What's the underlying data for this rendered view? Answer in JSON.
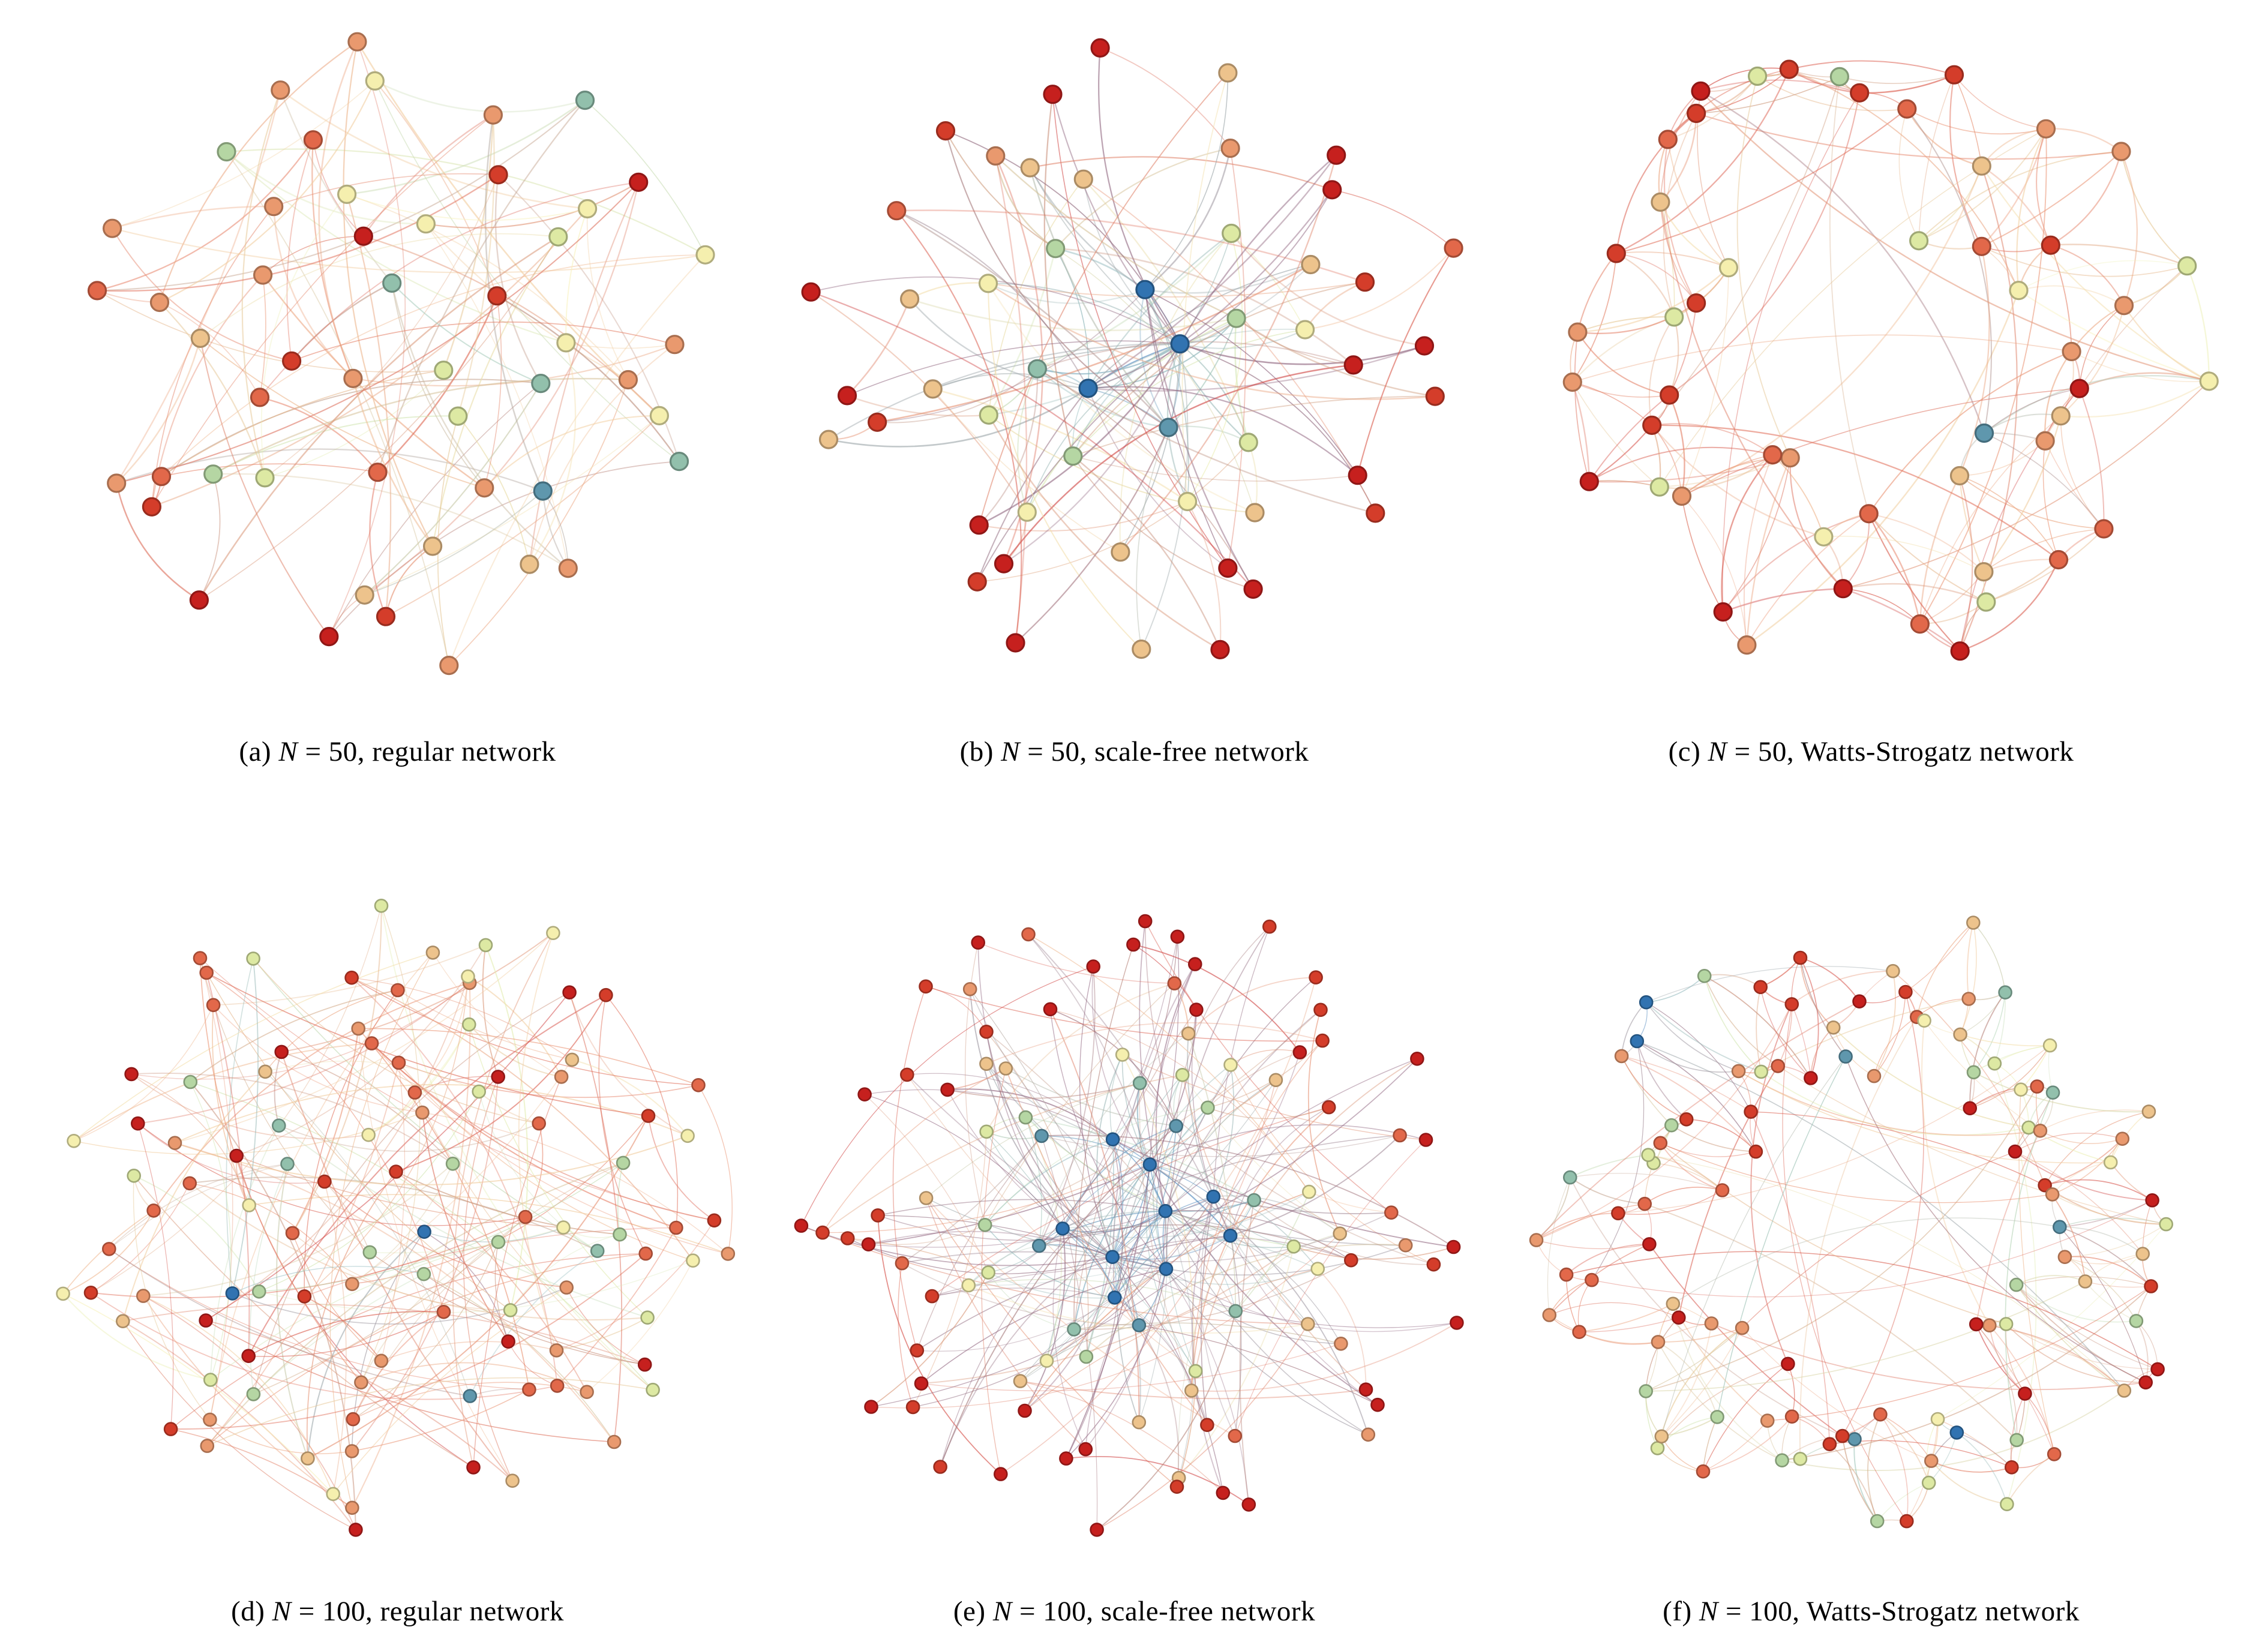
{
  "figure": {
    "background": "#ffffff",
    "text_color": "#000000",
    "palette_names": [
      "red",
      "scarlet",
      "salmon",
      "orange",
      "tan",
      "pale-yellow",
      "yellow-green",
      "pale-green",
      "teal-green",
      "steel-blue",
      "blue"
    ],
    "palette": [
      "#c6201e",
      "#d43d2a",
      "#e2684a",
      "#e9996e",
      "#edc38c",
      "#f5efae",
      "#dde9a3",
      "#b5d6a3",
      "#92c0ac",
      "#5f97ad",
      "#3173b1"
    ],
    "panels": [
      {
        "id": "a",
        "n": 50,
        "network": "regular",
        "caption": {
          "pre": "(a) ",
          "var": "N",
          "rest": " = 50, regular network"
        },
        "seed": 11,
        "layout": "disc",
        "gen": {
          "perms": 2,
          "half": 1
        },
        "node_radius": 14.5,
        "node_stroke": 3.2,
        "edge_width": 2.1,
        "color_weights": [
          0.09,
          0.07,
          0.12,
          0.17,
          0.12,
          0.17,
          0.08,
          0.08,
          0.05,
          0.03,
          0.02
        ]
      },
      {
        "id": "b",
        "n": 50,
        "network": "scale-free",
        "caption": {
          "pre": "(b) ",
          "var": "N",
          "rest": " = 50, scale-free network"
        },
        "seed": 23,
        "layout": "disc",
        "gen": {
          "m": 3
        },
        "node_radius": 14.5,
        "node_stroke": 3.2,
        "edge_width": 2.1,
        "rank_colors": [
          [
            0.042,
            10
          ],
          [
            0.062,
            9
          ],
          [
            0.1,
            8
          ],
          [
            0.16,
            7
          ],
          [
            0.22,
            6
          ],
          [
            0.3,
            5
          ],
          [
            0.42,
            4
          ]
        ],
        "leaf_weights": [
          0.45,
          0.25,
          0.18,
          0.07,
          0.05
        ]
      },
      {
        "id": "c",
        "n": 50,
        "network": "Watts-Strogatz",
        "caption": {
          "pre": "(c) ",
          "var": "N",
          "rest": " = 50, Watts-Strogatz network"
        },
        "seed": 37,
        "layout": "ring",
        "gen": {
          "k": 8,
          "p": 0.22
        },
        "node_radius": 14.5,
        "node_stroke": 3.2,
        "edge_width": 2.0,
        "color_weights": [
          0.17,
          0.14,
          0.19,
          0.18,
          0.12,
          0.09,
          0.05,
          0.03,
          0.01,
          0.01,
          0.01
        ]
      },
      {
        "id": "d",
        "n": 100,
        "network": "regular",
        "caption": {
          "pre": "(d) ",
          "var": "N",
          "rest": " = 100, regular network"
        },
        "seed": 41,
        "layout": "disc",
        "gen": {
          "perms": 2,
          "half": 0
        },
        "node_radius": 10.5,
        "node_stroke": 2.6,
        "edge_width": 1.7,
        "color_weights": [
          0.13,
          0.1,
          0.15,
          0.16,
          0.12,
          0.14,
          0.09,
          0.06,
          0.03,
          0.01,
          0.01
        ]
      },
      {
        "id": "e",
        "n": 100,
        "network": "scale-free",
        "caption": {
          "pre": "(e) ",
          "var": "N",
          "rest": " = 100, scale-free network"
        },
        "seed": 59,
        "layout": "disc",
        "gen": {
          "m": 3
        },
        "node_radius": 10.5,
        "node_stroke": 2.6,
        "edge_width": 1.6,
        "rank_colors": [
          [
            0.09,
            10
          ],
          [
            0.13,
            9
          ],
          [
            0.17,
            8
          ],
          [
            0.21,
            7
          ],
          [
            0.26,
            6
          ],
          [
            0.32,
            5
          ],
          [
            0.42,
            4
          ]
        ],
        "leaf_weights": [
          0.5,
          0.25,
          0.15,
          0.06,
          0.04
        ]
      },
      {
        "id": "f",
        "n": 100,
        "network": "Watts-Strogatz",
        "caption": {
          "pre": "(f) ",
          "var": "N",
          "rest": " = 100, Watts-Strogatz network"
        },
        "seed": 73,
        "layout": "ring",
        "gen": {
          "k": 6,
          "p": 0.25
        },
        "node_radius": 10.5,
        "node_stroke": 2.6,
        "edge_width": 1.6,
        "color_weights": [
          0.13,
          0.1,
          0.13,
          0.12,
          0.1,
          0.1,
          0.09,
          0.09,
          0.07,
          0.04,
          0.03
        ]
      }
    ]
  }
}
